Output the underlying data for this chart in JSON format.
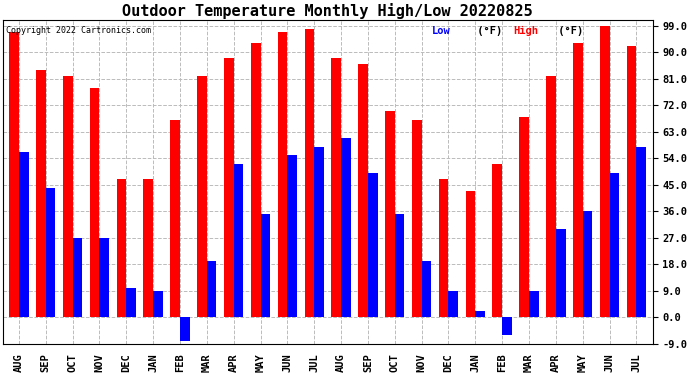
{
  "title": "Outdoor Temperature Monthly High/Low 20220825",
  "copyright": "Copyright 2022 Cartronics.com",
  "months": [
    "AUG",
    "SEP",
    "OCT",
    "NOV",
    "DEC",
    "JAN",
    "FEB",
    "MAR",
    "APR",
    "MAY",
    "JUN",
    "JUL",
    "AUG",
    "SEP",
    "OCT",
    "NOV",
    "DEC",
    "JAN",
    "FEB",
    "MAR",
    "APR",
    "MAY",
    "JUN",
    "JUL"
  ],
  "high": [
    97,
    84,
    82,
    78,
    47,
    47,
    67,
    82,
    88,
    93,
    97,
    98,
    88,
    86,
    70,
    67,
    47,
    43,
    52,
    68,
    82,
    93,
    99,
    92
  ],
  "low": [
    56,
    44,
    27,
    27,
    10,
    9,
    -8,
    19,
    52,
    35,
    55,
    58,
    61,
    49,
    35,
    19,
    9,
    2,
    -6,
    9,
    30,
    36,
    49,
    58
  ],
  "ylim_min": -9.0,
  "ylim_max": 101.0,
  "yticks": [
    -9.0,
    0.0,
    9.0,
    18.0,
    27.0,
    36.0,
    45.0,
    54.0,
    63.0,
    72.0,
    81.0,
    90.0,
    99.0
  ],
  "bar_width": 0.36,
  "high_color": "#FF0000",
  "low_color": "#0000FF",
  "bg_color": "#FFFFFF",
  "grid_color": "#BBBBBB",
  "title_fontsize": 11,
  "tick_fontsize": 7.5
}
